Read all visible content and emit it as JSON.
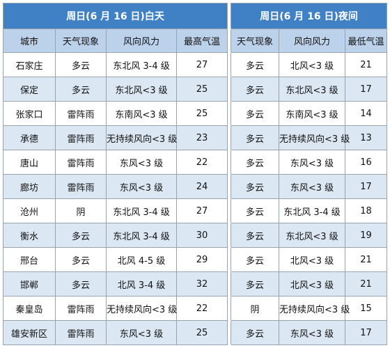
{
  "day_header": "周日(6 月 16 日)白天",
  "night_header": "周日(6 月 16 日)夜间",
  "columns": {
    "city": "城市",
    "day_weather": "天气现象",
    "day_wind": "风向风力",
    "max_temp": "最高气温",
    "night_weather": "天气现象",
    "night_wind": "风向风力",
    "min_temp": "最低气温"
  },
  "rows": [
    {
      "city": "石家庄",
      "day_weather": "多云",
      "day_wind": "东北风 3-4 级",
      "max_temp": "27",
      "night_weather": "多云",
      "night_wind": "北风<3 级",
      "min_temp": "21"
    },
    {
      "city": "保定",
      "day_weather": "多云",
      "day_wind": "东北风<3 级",
      "max_temp": "25",
      "night_weather": "多云",
      "night_wind": "东北风<3 级",
      "min_temp": "17"
    },
    {
      "city": "张家口",
      "day_weather": "雷阵雨",
      "day_wind": "东南风<3 级",
      "max_temp": "25",
      "night_weather": "多云",
      "night_wind": "东南风<3 级",
      "min_temp": "14"
    },
    {
      "city": "承德",
      "day_weather": "雷阵雨",
      "day_wind": "无持续风向<3 级",
      "max_temp": "23",
      "night_weather": "多云",
      "night_wind": "无持续风向<3 级",
      "min_temp": "13"
    },
    {
      "city": "唐山",
      "day_weather": "雷阵雨",
      "day_wind": "东风<3 级",
      "max_temp": "22",
      "night_weather": "多云",
      "night_wind": "东风<3 级",
      "min_temp": "16"
    },
    {
      "city": "廊坊",
      "day_weather": "雷阵雨",
      "day_wind": "东风<3 级",
      "max_temp": "24",
      "night_weather": "多云",
      "night_wind": "东风<3 级",
      "min_temp": "17"
    },
    {
      "city": "沧州",
      "day_weather": "阴",
      "day_wind": "东北风 3-4 级",
      "max_temp": "27",
      "night_weather": "多云",
      "night_wind": "东北风 3-4 级",
      "min_temp": "18"
    },
    {
      "city": "衡水",
      "day_weather": "多云",
      "day_wind": "东北风 3-4 级",
      "max_temp": "30",
      "night_weather": "多云",
      "night_wind": "东北风<3 级",
      "min_temp": "19"
    },
    {
      "city": "邢台",
      "day_weather": "多云",
      "day_wind": "北风 4-5 级",
      "max_temp": "29",
      "night_weather": "多云",
      "night_wind": "北风<3 级",
      "min_temp": "21"
    },
    {
      "city": "邯郸",
      "day_weather": "多云",
      "day_wind": "北风 3-4 级",
      "max_temp": "32",
      "night_weather": "多云",
      "night_wind": "北风<3 级",
      "min_temp": "21"
    },
    {
      "city": "秦皇岛",
      "day_weather": "雷阵雨",
      "day_wind": "无持续风向<3 级",
      "max_temp": "22",
      "night_weather": "阴",
      "night_wind": "无持续风向<3 级",
      "min_temp": "15"
    },
    {
      "city": "雄安新区",
      "day_weather": "雷阵雨",
      "day_wind": "东风<3 级",
      "max_temp": "25",
      "night_weather": "多云",
      "night_wind": "东风<3 级",
      "min_temp": "17"
    }
  ]
}
